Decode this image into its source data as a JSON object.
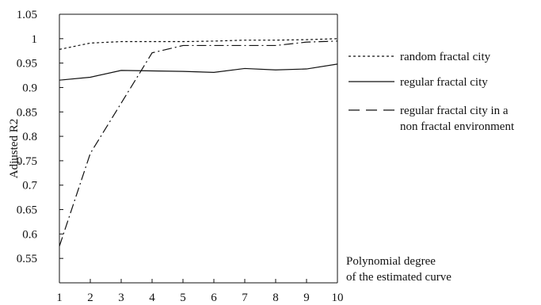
{
  "chart_data": {
    "type": "line",
    "title": "",
    "xlabel": "Polynomial degree\nof the estimated curve",
    "xlabel_lines": [
      "Polynomial degree",
      "of the estimated curve"
    ],
    "ylabel": "Adjusted R2",
    "x": [
      1,
      2,
      3,
      4,
      5,
      6,
      7,
      8,
      9,
      10
    ],
    "xlim": [
      1,
      10
    ],
    "ylim": [
      0.5,
      1.05
    ],
    "yticks": [
      0.55,
      0.6,
      0.65,
      0.7,
      0.75,
      0.8,
      0.85,
      0.9,
      0.95,
      1,
      1.05
    ],
    "grid": false,
    "legend_position": "top-right (outside plot)",
    "series": [
      {
        "name": "random fractal city",
        "legend_lines": [
          "random fractal city"
        ],
        "style": "dotted",
        "color": "#111111",
        "values": [
          0.978,
          0.991,
          0.994,
          0.994,
          0.994,
          0.995,
          0.997,
          0.997,
          0.998,
          1.0
        ]
      },
      {
        "name": "regular fractal city",
        "legend_lines": [
          "regular fractal city"
        ],
        "style": "solid",
        "color": "#111111",
        "values": [
          0.915,
          0.921,
          0.935,
          0.934,
          0.933,
          0.931,
          0.939,
          0.936,
          0.938,
          0.948
        ]
      },
      {
        "name": "regular fractal city in a non fractal environment",
        "legend_lines": [
          "regular fractal city in a",
          "non fractal environment"
        ],
        "style": "dashdot",
        "color": "#111111",
        "values": [
          0.575,
          0.765,
          0.868,
          0.971,
          0.986,
          0.986,
          0.986,
          0.986,
          0.993,
          0.995
        ]
      }
    ]
  }
}
